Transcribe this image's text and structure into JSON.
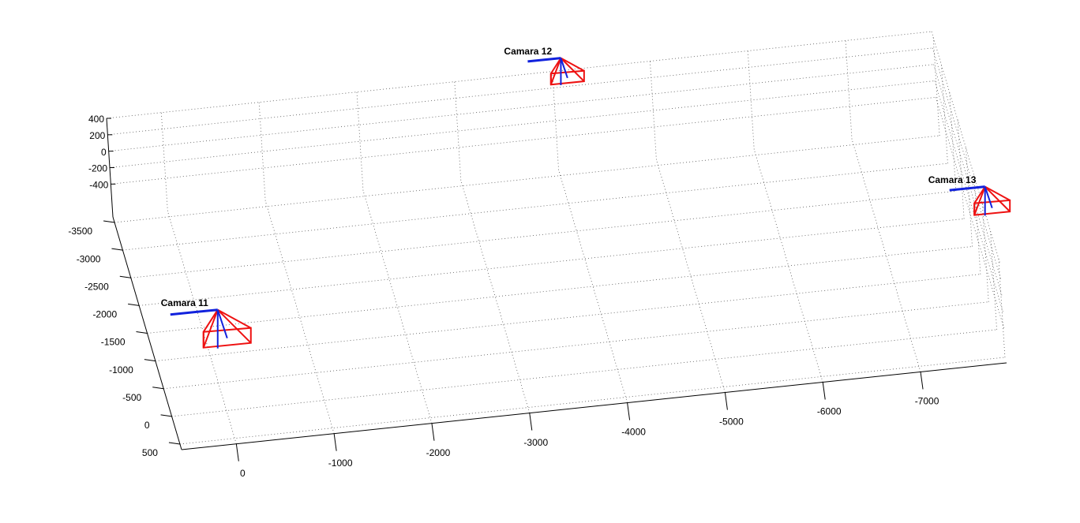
{
  "chart_data": {
    "type": "scatter3d",
    "labels": [
      "Camara 11",
      "Camara 12",
      "Camara 13"
    ],
    "x": [
      18,
      -4124,
      -7956
    ],
    "y": [
      -44,
      -3818,
      -786
    ],
    "z": [
      400,
      400,
      400
    ],
    "xlim": [
      -7880,
      560
    ],
    "ylim": [
      -3600,
      600
    ],
    "zlim": [
      -800,
      400
    ],
    "xticks": [
      -7000,
      -6000,
      -5000,
      -4000,
      -3000,
      -2000,
      -1000,
      0
    ],
    "yticks": [
      -3500,
      -3000,
      -2500,
      -2000,
      -1500,
      -1000,
      -500,
      0,
      500
    ],
    "zticks": [
      -400,
      -200,
      0,
      200,
      400
    ],
    "grid": true,
    "frustum_color": "#ee1111",
    "axis_color": "#1122dd"
  }
}
